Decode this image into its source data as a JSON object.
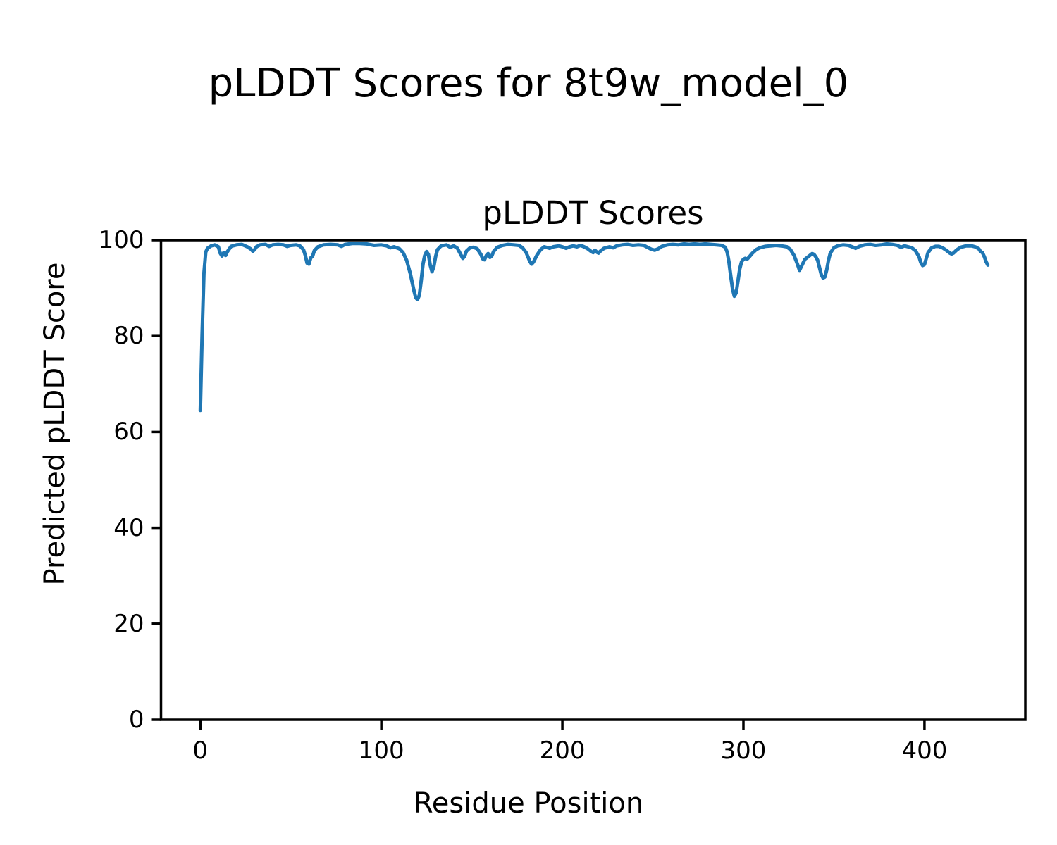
{
  "figure": {
    "title": "pLDDT Scores for 8t9w_model_0",
    "background": "#ffffff"
  },
  "chart_data": {
    "type": "line",
    "title": "pLDDT Scores",
    "xlabel": "Residue Position",
    "ylabel": "Predicted pLDDT Score",
    "xlim": [
      -21.7,
      455.7
    ],
    "ylim": [
      0,
      100
    ],
    "x_ticks": [
      0,
      100,
      200,
      300,
      400
    ],
    "y_ticks": [
      0,
      20,
      40,
      60,
      80,
      100
    ],
    "grid": false,
    "legend": "none",
    "line_color": "#1f77b4",
    "axis_color": "#000000",
    "series": [
      {
        "name": "pLDDT",
        "points": [
          [
            0,
            64.5
          ],
          [
            1,
            80.0
          ],
          [
            2,
            93.0
          ],
          [
            3,
            97.5
          ],
          [
            4,
            98.3
          ],
          [
            6,
            98.8
          ],
          [
            8,
            99.0
          ],
          [
            10,
            98.6
          ],
          [
            11,
            97.3
          ],
          [
            12,
            96.7
          ],
          [
            13,
            97.4
          ],
          [
            14,
            96.8
          ],
          [
            15,
            97.6
          ],
          [
            17,
            98.7
          ],
          [
            20,
            99.0
          ],
          [
            23,
            99.1
          ],
          [
            26,
            98.6
          ],
          [
            28,
            98.1
          ],
          [
            29,
            97.7
          ],
          [
            30,
            98.0
          ],
          [
            31,
            98.6
          ],
          [
            33,
            99.0
          ],
          [
            36,
            99.1
          ],
          [
            38,
            98.7
          ],
          [
            40,
            99.0
          ],
          [
            43,
            99.1
          ],
          [
            46,
            99.0
          ],
          [
            48,
            98.7
          ],
          [
            50,
            98.9
          ],
          [
            53,
            99.0
          ],
          [
            55,
            98.8
          ],
          [
            57,
            98.0
          ],
          [
            58,
            96.8
          ],
          [
            59,
            95.2
          ],
          [
            60,
            95.0
          ],
          [
            61,
            96.3
          ],
          [
            62,
            96.6
          ],
          [
            63,
            97.8
          ],
          [
            65,
            98.6
          ],
          [
            68,
            99.0
          ],
          [
            72,
            99.1
          ],
          [
            76,
            99.0
          ],
          [
            78,
            98.7
          ],
          [
            80,
            99.1
          ],
          [
            84,
            99.3
          ],
          [
            88,
            99.3
          ],
          [
            92,
            99.2
          ],
          [
            96,
            98.9
          ],
          [
            100,
            99.0
          ],
          [
            103,
            98.8
          ],
          [
            105,
            98.4
          ],
          [
            107,
            98.6
          ],
          [
            110,
            98.2
          ],
          [
            112,
            97.4
          ],
          [
            114,
            95.8
          ],
          [
            116,
            93.0
          ],
          [
            118,
            89.5
          ],
          [
            119,
            88.0
          ],
          [
            120,
            87.6
          ],
          [
            121,
            88.5
          ],
          [
            122,
            91.5
          ],
          [
            123,
            95.0
          ],
          [
            124,
            96.8
          ],
          [
            125,
            97.6
          ],
          [
            126,
            97.0
          ],
          [
            127,
            94.8
          ],
          [
            128,
            93.4
          ],
          [
            129,
            94.5
          ],
          [
            130,
            96.6
          ],
          [
            131,
            98.0
          ],
          [
            133,
            98.8
          ],
          [
            136,
            99.0
          ],
          [
            138,
            98.5
          ],
          [
            140,
            98.8
          ],
          [
            142,
            98.3
          ],
          [
            144,
            96.9
          ],
          [
            145,
            96.2
          ],
          [
            146,
            96.6
          ],
          [
            147,
            97.7
          ],
          [
            149,
            98.4
          ],
          [
            151,
            98.5
          ],
          [
            153,
            98.2
          ],
          [
            155,
            97.0
          ],
          [
            156,
            96.1
          ],
          [
            157,
            95.9
          ],
          [
            158,
            96.8
          ],
          [
            159,
            97.2
          ],
          [
            160,
            96.4
          ],
          [
            161,
            96.7
          ],
          [
            162,
            97.6
          ],
          [
            164,
            98.5
          ],
          [
            167,
            98.9
          ],
          [
            170,
            99.1
          ],
          [
            173,
            99.0
          ],
          [
            176,
            98.9
          ],
          [
            178,
            98.4
          ],
          [
            180,
            97.4
          ],
          [
            182,
            95.6
          ],
          [
            183,
            95.0
          ],
          [
            184,
            95.4
          ],
          [
            186,
            96.9
          ],
          [
            188,
            98.0
          ],
          [
            190,
            98.6
          ],
          [
            193,
            98.3
          ],
          [
            195,
            98.6
          ],
          [
            198,
            98.8
          ],
          [
            200,
            98.6
          ],
          [
            202,
            98.3
          ],
          [
            204,
            98.6
          ],
          [
            206,
            98.8
          ],
          [
            208,
            98.6
          ],
          [
            210,
            98.9
          ],
          [
            212,
            98.6
          ],
          [
            214,
            98.2
          ],
          [
            216,
            97.6
          ],
          [
            217,
            97.4
          ],
          [
            218,
            97.9
          ],
          [
            219,
            97.5
          ],
          [
            220,
            97.3
          ],
          [
            221,
            97.7
          ],
          [
            223,
            98.3
          ],
          [
            226,
            98.6
          ],
          [
            228,
            98.4
          ],
          [
            230,
            98.8
          ],
          [
            233,
            99.0
          ],
          [
            236,
            99.1
          ],
          [
            239,
            98.9
          ],
          [
            242,
            99.0
          ],
          [
            245,
            98.9
          ],
          [
            247,
            98.5
          ],
          [
            249,
            98.1
          ],
          [
            251,
            97.9
          ],
          [
            253,
            98.2
          ],
          [
            255,
            98.7
          ],
          [
            258,
            99.0
          ],
          [
            261,
            99.1
          ],
          [
            264,
            99.0
          ],
          [
            267,
            99.2
          ],
          [
            270,
            99.1
          ],
          [
            273,
            99.2
          ],
          [
            276,
            99.1
          ],
          [
            279,
            99.2
          ],
          [
            282,
            99.1
          ],
          [
            285,
            99.0
          ],
          [
            288,
            98.9
          ],
          [
            290,
            98.5
          ],
          [
            291,
            97.5
          ],
          [
            292,
            95.5
          ],
          [
            293,
            92.5
          ],
          [
            294,
            89.8
          ],
          [
            295,
            88.3
          ],
          [
            296,
            89.0
          ],
          [
            297,
            91.5
          ],
          [
            298,
            94.0
          ],
          [
            299,
            95.5
          ],
          [
            300,
            96.0
          ],
          [
            301,
            96.2
          ],
          [
            302,
            96.0
          ],
          [
            303,
            96.4
          ],
          [
            305,
            97.3
          ],
          [
            307,
            98.0
          ],
          [
            309,
            98.4
          ],
          [
            312,
            98.7
          ],
          [
            315,
            98.8
          ],
          [
            318,
            98.9
          ],
          [
            321,
            98.8
          ],
          [
            324,
            98.6
          ],
          [
            326,
            98.0
          ],
          [
            328,
            96.8
          ],
          [
            330,
            94.8
          ],
          [
            331,
            93.7
          ],
          [
            332,
            94.5
          ],
          [
            334,
            96.0
          ],
          [
            336,
            96.6
          ],
          [
            338,
            97.2
          ],
          [
            339,
            97.0
          ],
          [
            340,
            96.5
          ],
          [
            341,
            95.8
          ],
          [
            342,
            94.3
          ],
          [
            343,
            92.8
          ],
          [
            344,
            92.1
          ],
          [
            345,
            92.3
          ],
          [
            346,
            93.8
          ],
          [
            347,
            95.8
          ],
          [
            348,
            97.3
          ],
          [
            350,
            98.4
          ],
          [
            352,
            98.8
          ],
          [
            355,
            99.0
          ],
          [
            358,
            98.9
          ],
          [
            360,
            98.6
          ],
          [
            362,
            98.3
          ],
          [
            364,
            98.7
          ],
          [
            367,
            99.0
          ],
          [
            370,
            99.1
          ],
          [
            373,
            98.9
          ],
          [
            376,
            99.0
          ],
          [
            379,
            99.2
          ],
          [
            382,
            99.1
          ],
          [
            385,
            98.9
          ],
          [
            387,
            98.5
          ],
          [
            389,
            98.8
          ],
          [
            391,
            98.6
          ],
          [
            393,
            98.4
          ],
          [
            395,
            97.8
          ],
          [
            397,
            96.5
          ],
          [
            398,
            95.3
          ],
          [
            399,
            94.7
          ],
          [
            400,
            94.9
          ],
          [
            401,
            96.2
          ],
          [
            402,
            97.4
          ],
          [
            404,
            98.4
          ],
          [
            406,
            98.7
          ],
          [
            408,
            98.7
          ],
          [
            410,
            98.4
          ],
          [
            412,
            97.9
          ],
          [
            414,
            97.3
          ],
          [
            415,
            97.1
          ],
          [
            416,
            97.3
          ],
          [
            418,
            98.0
          ],
          [
            420,
            98.5
          ],
          [
            423,
            98.8
          ],
          [
            426,
            98.8
          ],
          [
            428,
            98.6
          ],
          [
            430,
            98.2
          ],
          [
            431,
            97.6
          ],
          [
            432,
            97.4
          ],
          [
            433,
            96.6
          ],
          [
            434,
            95.5
          ],
          [
            435,
            94.8
          ]
        ]
      }
    ]
  }
}
